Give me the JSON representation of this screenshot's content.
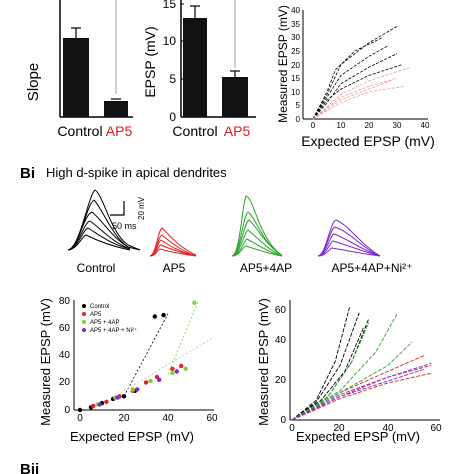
{
  "panel_a": {
    "slope_ylabel": "Slope",
    "epsp_ylabel": "EPSP (mV)",
    "epsp_ticks": [
      "0",
      "5",
      "10",
      "15"
    ],
    "categories": [
      "Control",
      "AP5"
    ],
    "category_colors": [
      "#000000",
      "#d62020"
    ]
  },
  "panel_a_scatter": {
    "xlabel": "Expected EPSP (mV)",
    "ylabel": "Measured EPSP (mV)",
    "xticks": [
      "0",
      "10",
      "20",
      "30",
      "40"
    ],
    "yticks": [
      "0",
      "5",
      "10",
      "15",
      "20",
      "25",
      "30",
      "35",
      "40"
    ],
    "series_colors": [
      "#000000",
      "#e8a0a0"
    ]
  },
  "panel_bi": {
    "label": "Bi",
    "title": "High d-spike in apical dendrites",
    "scale_voltage": "20 mV",
    "scale_time": "50 ms",
    "trace_labels": [
      "Control",
      "AP5",
      "AP5+4AP",
      "AP5+4AP+Ni²⁺"
    ],
    "trace_colors": [
      "#000000",
      "#e32222",
      "#2aa52a",
      "#7b2bd4"
    ]
  },
  "panel_bi_scatter": {
    "xlabel": "Expected EPSP (mV)",
    "ylabel": "Measured EPSP (mV)",
    "xticks": [
      "0",
      "20",
      "40",
      "60"
    ],
    "yticks": [
      "0",
      "20",
      "40",
      "60",
      "80"
    ],
    "legend": [
      "Control",
      "AP5",
      "AP5 + 4AP",
      "AP5 + 4AP + Ni²⁺"
    ],
    "legend_colors": [
      "#000000",
      "#e32222",
      "#7fd13b",
      "#7b2bd4"
    ]
  },
  "panel_bi_lines": {
    "xlabel": "Expected EPSP (mV)",
    "ylabel": "Measured EPSP (mV)",
    "xticks": [
      "0",
      "20",
      "40",
      "60"
    ],
    "yticks": [
      "0",
      "20",
      "40",
      "60"
    ]
  },
  "panel_bii": {
    "label": "Bii"
  },
  "chart_data": [
    {
      "type": "bar",
      "ylabel": "Slope",
      "categories": [
        "Control",
        "AP5"
      ],
      "values": [
        3.8,
        0.75
      ],
      "errors": [
        0.6,
        0.08
      ]
    },
    {
      "type": "bar",
      "ylabel": "EPSP (mV)",
      "categories": [
        "Control",
        "AP5"
      ],
      "values": [
        13,
        5.2
      ],
      "errors": [
        1.4,
        0.8
      ],
      "ylim": [
        0,
        15
      ]
    },
    {
      "type": "line",
      "xlabel": "Expected EPSP (mV)",
      "ylabel": "Measured EPSP (mV)",
      "xlim": [
        0,
        40
      ],
      "ylim": [
        0,
        40
      ],
      "series": [
        {
          "color": "#000000",
          "lines": [
            [
              [
                0,
                0
              ],
              [
                5,
                9
              ],
              [
                10,
                20
              ],
              [
                20,
                28
              ],
              [
                30,
                34
              ]
            ],
            [
              [
                0,
                0
              ],
              [
                5,
                8
              ],
              [
                10,
                16
              ],
              [
                20,
                23
              ],
              [
                27,
                27
              ]
            ],
            [
              [
                0,
                0
              ],
              [
                5,
                6
              ],
              [
                10,
                13
              ],
              [
                20,
                19
              ],
              [
                30,
                24
              ]
            ],
            [
              [
                0,
                0
              ],
              [
                5,
                10
              ],
              [
                8,
                18
              ],
              [
                15,
                25
              ],
              [
                25,
                30
              ]
            ],
            [
              [
                0,
                0
              ],
              [
                5,
                7
              ],
              [
                10,
                11
              ],
              [
                20,
                16
              ],
              [
                32,
                20
              ]
            ]
          ]
        },
        {
          "color": "#e8a0a0",
          "lines": [
            [
              [
                0,
                0
              ],
              [
                10,
                9
              ],
              [
                20,
                14
              ],
              [
                35,
                19
              ]
            ],
            [
              [
                0,
                0
              ],
              [
                10,
                8
              ],
              [
                20,
                12
              ],
              [
                30,
                15
              ]
            ],
            [
              [
                0,
                0
              ],
              [
                10,
                6
              ],
              [
                20,
                10
              ],
              [
                33,
                12
              ]
            ],
            [
              [
                0,
                0
              ],
              [
                10,
                7
              ],
              [
                20,
                11
              ],
              [
                28,
                14
              ]
            ]
          ]
        }
      ]
    },
    {
      "type": "scatter",
      "xlabel": "Expected EPSP (mV)",
      "ylabel": "Measured EPSP (mV)",
      "xlim": [
        0,
        60
      ],
      "ylim": [
        0,
        80
      ],
      "series": [
        {
          "name": "Control",
          "color": "#000000",
          "points": [
            [
              0,
              0
            ],
            [
              5,
              2
            ],
            [
              10,
              5
            ],
            [
              15,
              8
            ],
            [
              20,
              10
            ],
            [
              25,
              14
            ],
            [
              34,
              68
            ],
            [
              38,
              69
            ]
          ]
        },
        {
          "name": "AP5",
          "color": "#e32222",
          "points": [
            [
              6,
              3
            ],
            [
              12,
              6
            ],
            [
              18,
              10
            ],
            [
              24,
              14
            ],
            [
              30,
              20
            ],
            [
              35,
              24
            ],
            [
              42,
              30
            ],
            [
              46,
              32
            ]
          ]
        },
        {
          "name": "AP5 + 4AP",
          "color": "#7fd13b",
          "points": [
            [
              8,
              4
            ],
            [
              16,
              9
            ],
            [
              24,
              15
            ],
            [
              32,
              21
            ],
            [
              42,
              27
            ],
            [
              48,
              30
            ],
            [
              52,
              78
            ]
          ]
        },
        {
          "name": "AP5 + 4AP + Ni²⁺",
          "color": "#7b2bd4",
          "points": [
            [
              9,
              4
            ],
            [
              17,
              9
            ],
            [
              26,
              15
            ],
            [
              36,
              22
            ],
            [
              44,
              28
            ]
          ]
        }
      ]
    },
    {
      "type": "line",
      "xlabel": "Expected EPSP (mV)",
      "ylabel": "Measured EPSP (mV)",
      "xlim": [
        0,
        60
      ],
      "ylim": [
        0,
        60
      ],
      "series": [
        {
          "color": "#000000",
          "lines": [
            [
              [
                0,
                0
              ],
              [
                10,
                10
              ],
              [
                18,
                30
              ],
              [
                24,
                58
              ]
            ],
            [
              [
                0,
                0
              ],
              [
                10,
                9
              ],
              [
                20,
                28
              ],
              [
                28,
                55
              ]
            ],
            [
              [
                0,
                0
              ],
              [
                12,
                10
              ],
              [
                22,
                25
              ],
              [
                30,
                48
              ]
            ],
            [
              [
                0,
                0
              ],
              [
                15,
                12
              ],
              [
                25,
                30
              ],
              [
                32,
                52
              ]
            ]
          ]
        },
        {
          "color": "#e32222",
          "lines": [
            [
              [
                0,
                0
              ],
              [
                20,
                12
              ],
              [
                40,
                22
              ],
              [
                58,
                28
              ]
            ],
            [
              [
                0,
                0
              ],
              [
                20,
                14
              ],
              [
                40,
                25
              ],
              [
                55,
                33
              ]
            ],
            [
              [
                0,
                0
              ],
              [
                20,
                11
              ],
              [
                40,
                19
              ],
              [
                58,
                24
              ]
            ]
          ]
        },
        {
          "color": "#2aa52a",
          "lines": [
            [
              [
                0,
                0
              ],
              [
                15,
                12
              ],
              [
                25,
                30
              ],
              [
                32,
                50
              ]
            ],
            [
              [
                0,
                0
              ],
              [
                20,
                15
              ],
              [
                35,
                35
              ],
              [
                44,
                55
              ]
            ],
            [
              [
                0,
                0
              ],
              [
                20,
                14
              ],
              [
                40,
                28
              ],
              [
                50,
                40
              ]
            ]
          ]
        },
        {
          "color": "#7b2bd4",
          "lines": [
            [
              [
                0,
                0
              ],
              [
                20,
                13
              ],
              [
                40,
                22
              ],
              [
                58,
                29
              ]
            ],
            [
              [
                0,
                0
              ],
              [
                20,
                12
              ],
              [
                40,
                20
              ],
              [
                55,
                26
              ]
            ]
          ]
        }
      ]
    }
  ]
}
